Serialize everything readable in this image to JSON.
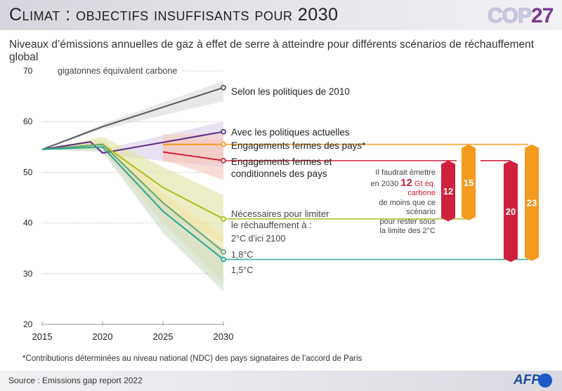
{
  "header": {
    "title": "Climat : objectifs insuffisants pour 2030",
    "logo_cop": "COP",
    "logo_num": "27"
  },
  "subtitle": "Niveaux d’émissions annuelles de gaz à effet de serre à atteindre pour différents scénarios de réchauffement global",
  "note": {
    "line1": "Il faudrait émettre",
    "line2_pre": "en 2030 ",
    "line2_big": "12",
    "line2_red": " Gt éq. carbone",
    "line3": "de moins que ce scénario",
    "line4": "pour rester sous",
    "line5": "la limite des 2°C"
  },
  "footnote": "*Contributions déterminées au niveau national (NDC) des pays signataires de l’accord de Paris",
  "footer": {
    "source": "Source : Emissions gap report 2022",
    "brand": "AFP"
  },
  "chart_data": {
    "type": "line",
    "title": "Climat : objectifs insuffisants pour 2030",
    "ylabel": "gigatonnes équivalent carbone",
    "xlabel": "",
    "x_ticks": [
      2015,
      2020,
      2025,
      2030
    ],
    "y_ticks": [
      20,
      30,
      40,
      50,
      60,
      70
    ],
    "xlim": [
      2015,
      2030
    ],
    "ylim": [
      20,
      70
    ],
    "grid": "horizontal-dotted",
    "series": [
      {
        "name": "Selon les politiques de 2010",
        "color": "#555a60",
        "band_color": "#d9d9d9",
        "x": [
          2015,
          2020,
          2030
        ],
        "y": [
          54.5,
          59,
          66.7
        ],
        "band_upper": [
          54.5,
          59.5,
          68
        ],
        "band_lower": [
          54.5,
          58.5,
          64
        ]
      },
      {
        "name": "Avec les politiques actuelles",
        "color": "#5b2a86",
        "band_color": "#d8cdea",
        "x": [
          2015,
          2019,
          2020,
          2030
        ],
        "y": [
          54.5,
          56,
          53.8,
          58
        ],
        "band_upper": [
          54.5,
          56,
          54.5,
          60
        ],
        "band_lower": [
          54.5,
          56,
          53.5,
          51
        ]
      },
      {
        "name": "Engagements fermes des pays*",
        "color": "#f39a1f",
        "band_color": "#f7d2c0",
        "x": [
          2025,
          2030
        ],
        "y": [
          55.5,
          55.5
        ],
        "band_upper": [
          57.5,
          57.5
        ],
        "band_lower": [
          52,
          52
        ]
      },
      {
        "name": "Engagements fermes et conditionnels des pays",
        "color": "#d0213c",
        "band_color": "#f5c6bf",
        "x": [
          2025,
          2030
        ],
        "y": [
          54,
          52.3
        ],
        "band_upper": [
          56.5,
          56.5
        ],
        "band_lower": [
          52.5,
          48.5
        ]
      },
      {
        "name": "2°C d'ici 2100",
        "color": "#aebd1e",
        "band_color": "#dfe5a0",
        "x": [
          2015,
          2020,
          2025,
          2030
        ],
        "y": [
          54.5,
          55.5,
          47,
          40.8
        ],
        "band_upper": [
          54.5,
          57,
          51,
          45.5
        ],
        "band_lower": [
          54.5,
          54.5,
          42,
          36
        ]
      },
      {
        "name": "1,8°C",
        "color": "#6aa56a",
        "band_color": "#f1e3a7",
        "x": [
          2015,
          2020,
          2025,
          2030
        ],
        "y": [
          54.5,
          55.5,
          44,
          34.3
        ],
        "band_upper": [
          54.5,
          56.5,
          46,
          37.5
        ],
        "band_lower": [
          54.5,
          54.5,
          40,
          28
        ]
      },
      {
        "name": "1,5°C",
        "color": "#2aa59a",
        "band_color": "#c9dcc4",
        "x": [
          2015,
          2020,
          2025,
          2030
        ],
        "y": [
          54.5,
          55,
          42.3,
          32.8
        ],
        "band_upper": [
          54.5,
          56,
          44,
          35
        ],
        "band_lower": [
          54.5,
          54,
          38,
          26.5
        ]
      }
    ],
    "labels": {
      "s2010": "Selon les politiques de 2010",
      "actuelles": "Avec les politiques actuelles",
      "fermes": "Engagements fermes des pays*",
      "cond1": "Engagements fermes et",
      "cond2": "conditionnels des pays",
      "nec1": "Nécessaires pour limiter",
      "nec2": "le réchauffement à :",
      "t20": "2°C d’ici 2100",
      "t18": "1,8°C",
      "t15": "1,5°C"
    },
    "gap_bars": [
      {
        "label": "12",
        "value": 12,
        "from_scenario": "Engagements fermes et conditionnels des pays",
        "to_scenario": "2°C d'ici 2100",
        "color": "#d0213c"
      },
      {
        "label": "15",
        "value": 15,
        "from_scenario": "Engagements fermes des pays*",
        "to_scenario": "2°C d'ici 2100",
        "color": "#f39a1f"
      },
      {
        "label": "20",
        "value": 20,
        "from_scenario": "Engagements fermes et conditionnels des pays",
        "to_scenario": "1,5°C",
        "color": "#d0213c"
      },
      {
        "label": "23",
        "value": 23,
        "from_scenario": "Engagements fermes des pays*",
        "to_scenario": "1,5°C",
        "color": "#f39a1f"
      }
    ]
  }
}
